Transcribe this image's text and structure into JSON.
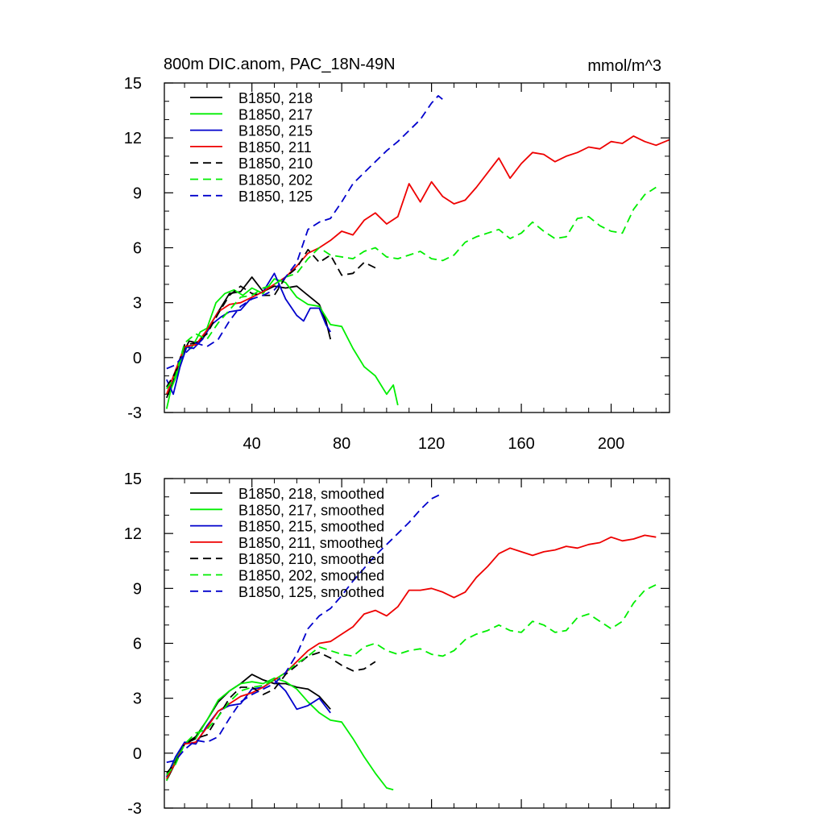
{
  "chart_data": [
    {
      "type": "line",
      "title": "800m DIC.anom, PAC_18N-49N",
      "units": "mmol/m^3",
      "xlabel": "",
      "ylabel": "",
      "xlim": [
        1,
        226
      ],
      "ylim": [
        -3,
        15
      ],
      "xticks": [
        40,
        80,
        120,
        160,
        200
      ],
      "xtick_labels": [
        "40",
        "80",
        "120",
        "160",
        "200"
      ],
      "yticks": [
        -3,
        0,
        3,
        6,
        9,
        12,
        15
      ],
      "ytick_labels": [
        "-3",
        "0",
        "3",
        "6",
        "9",
        "12",
        "15"
      ],
      "legend_position": "top-left",
      "series": [
        {
          "name": "B1850, 218",
          "color": "#000000",
          "dash": "solid",
          "x": [
            2,
            5,
            8,
            12,
            16,
            20,
            25,
            30,
            35,
            40,
            45,
            50,
            55,
            60,
            65,
            70,
            73,
            75
          ],
          "y": [
            -2.2,
            -1.3,
            -0.1,
            0.9,
            0.8,
            1.5,
            2.5,
            3.5,
            3.6,
            4.4,
            3.6,
            3.9,
            3.8,
            3.9,
            3.4,
            2.9,
            2.0,
            1.0
          ]
        },
        {
          "name": "B1850, 217",
          "color": "#00ee00",
          "dash": "solid",
          "x": [
            2,
            4,
            7,
            10,
            13,
            17,
            20,
            24,
            28,
            32,
            36,
            40,
            45,
            50,
            55,
            60,
            65,
            70,
            75,
            80,
            85,
            90,
            95,
            100,
            103,
            105
          ],
          "y": [
            -2.8,
            -1.7,
            -0.8,
            0.6,
            0.5,
            1.4,
            1.6,
            3.0,
            3.5,
            3.7,
            3.4,
            3.8,
            3.5,
            4.3,
            4.1,
            3.3,
            2.9,
            2.8,
            1.8,
            1.7,
            0.5,
            -0.5,
            -1.0,
            -2.0,
            -1.5,
            -2.6
          ]
        },
        {
          "name": "B1850, 215",
          "color": "#0000cc",
          "dash": "solid",
          "x": [
            2,
            5,
            8,
            11,
            14,
            18,
            22,
            26,
            30,
            35,
            40,
            45,
            50,
            55,
            60,
            63,
            66,
            70,
            73,
            75
          ],
          "y": [
            -1.2,
            -2.0,
            -0.5,
            0.6,
            0.5,
            1.0,
            1.8,
            2.2,
            2.5,
            2.6,
            3.3,
            3.6,
            4.6,
            3.2,
            2.3,
            2.0,
            2.7,
            2.7,
            1.8,
            1.4
          ]
        },
        {
          "name": "B1850, 211",
          "color": "#ee0000",
          "dash": "solid",
          "x": [
            2,
            6,
            10,
            15,
            20,
            25,
            30,
            35,
            40,
            45,
            50,
            55,
            60,
            65,
            70,
            75,
            80,
            85,
            90,
            95,
            100,
            105,
            110,
            115,
            120,
            125,
            130,
            135,
            140,
            145,
            150,
            155,
            160,
            165,
            170,
            175,
            180,
            185,
            190,
            195,
            200,
            205,
            210,
            215,
            220,
            226
          ],
          "y": [
            -2.0,
            -0.7,
            0.6,
            0.7,
            1.5,
            2.5,
            2.9,
            3.0,
            3.3,
            3.6,
            4.0,
            4.4,
            5.0,
            5.7,
            6.0,
            6.4,
            6.9,
            6.7,
            7.5,
            7.9,
            7.3,
            7.7,
            9.5,
            8.5,
            9.6,
            8.8,
            8.4,
            8.6,
            9.3,
            10.1,
            10.9,
            9.8,
            10.6,
            11.2,
            11.1,
            10.7,
            11.0,
            11.2,
            11.5,
            11.4,
            11.8,
            11.7,
            12.1,
            11.8,
            11.6,
            11.9
          ]
        },
        {
          "name": "B1850, 210",
          "color": "#000000",
          "dash": "dashed",
          "x": [
            2,
            6,
            10,
            15,
            20,
            25,
            30,
            35,
            40,
            45,
            50,
            55,
            60,
            65,
            70,
            75,
            80,
            85,
            90,
            95
          ],
          "y": [
            -1.6,
            -0.8,
            0.7,
            0.8,
            1.3,
            2.4,
            3.4,
            3.9,
            3.5,
            3.4,
            3.4,
            4.4,
            4.9,
            5.9,
            5.2,
            5.6,
            4.5,
            4.6,
            5.2,
            4.9
          ]
        },
        {
          "name": "B1850, 202",
          "color": "#00ee00",
          "dash": "dashed",
          "x": [
            2,
            6,
            10,
            15,
            20,
            25,
            30,
            35,
            40,
            45,
            50,
            55,
            60,
            65,
            70,
            75,
            80,
            85,
            90,
            95,
            100,
            105,
            110,
            115,
            120,
            125,
            130,
            135,
            140,
            145,
            150,
            155,
            160,
            165,
            170,
            175,
            180,
            185,
            190,
            195,
            200,
            205,
            210,
            215,
            220
          ],
          "y": [
            -1.7,
            -1.0,
            0.8,
            1.3,
            1.0,
            1.9,
            2.6,
            3.3,
            3.4,
            3.8,
            4.0,
            4.4,
            4.6,
            5.4,
            6.0,
            5.6,
            5.5,
            5.4,
            5.8,
            6.0,
            5.5,
            5.4,
            5.6,
            5.8,
            5.4,
            5.3,
            5.6,
            6.3,
            6.6,
            6.8,
            7.0,
            6.5,
            6.8,
            7.4,
            6.9,
            6.5,
            6.6,
            7.6,
            7.7,
            7.2,
            6.9,
            6.8,
            8.1,
            8.9,
            9.3
          ]
        },
        {
          "name": "B1850, 125",
          "color": "#0000cc",
          "dash": "dashed",
          "x": [
            2,
            6,
            10,
            15,
            20,
            25,
            30,
            35,
            40,
            45,
            50,
            55,
            60,
            65,
            70,
            75,
            80,
            85,
            90,
            95,
            100,
            105,
            110,
            115,
            120,
            123,
            126
          ],
          "y": [
            -0.6,
            -0.4,
            0.2,
            0.8,
            0.6,
            1.0,
            2.0,
            2.8,
            3.2,
            3.4,
            3.7,
            4.4,
            5.2,
            7.0,
            7.4,
            7.6,
            8.5,
            9.5,
            10.1,
            10.7,
            11.3,
            11.8,
            12.4,
            13.0,
            13.9,
            14.3,
            14.0
          ]
        }
      ]
    },
    {
      "type": "line",
      "title": "",
      "units": "",
      "xlabel": "",
      "ylabel": "",
      "xlim": [
        1,
        226
      ],
      "ylim": [
        -3,
        15
      ],
      "xticks": [
        40,
        80,
        120,
        160,
        200
      ],
      "xtick_labels": [],
      "yticks": [
        -3,
        0,
        3,
        6,
        9,
        12,
        15
      ],
      "ytick_labels": [
        "-3",
        "0",
        "3",
        "6",
        "9",
        "12",
        "15"
      ],
      "legend_position": "top-left",
      "series": [
        {
          "name": "B1850, 218, smoothed",
          "color": "#000000",
          "dash": "solid",
          "x": [
            2,
            6,
            10,
            15,
            20,
            25,
            30,
            35,
            40,
            45,
            50,
            55,
            60,
            65,
            70,
            75
          ],
          "y": [
            -1.5,
            -0.5,
            0.5,
            0.9,
            1.8,
            2.8,
            3.4,
            3.8,
            4.3,
            4.0,
            3.8,
            3.8,
            3.6,
            3.5,
            3.1,
            2.4
          ]
        },
        {
          "name": "B1850, 217, smoothed",
          "color": "#00ee00",
          "dash": "solid",
          "x": [
            2,
            6,
            10,
            15,
            20,
            25,
            30,
            35,
            40,
            45,
            50,
            55,
            60,
            65,
            70,
            75,
            80,
            85,
            90,
            95,
            100,
            103
          ],
          "y": [
            -1.5,
            -0.3,
            0.5,
            0.8,
            1.8,
            2.9,
            3.4,
            3.8,
            3.9,
            3.8,
            4.1,
            3.9,
            3.5,
            2.8,
            2.2,
            1.8,
            1.7,
            0.8,
            -0.2,
            -1.1,
            -1.9,
            -2.0
          ]
        },
        {
          "name": "B1850, 215, smoothed",
          "color": "#0000cc",
          "dash": "solid",
          "x": [
            2,
            6,
            10,
            15,
            20,
            25,
            30,
            35,
            40,
            45,
            50,
            55,
            60,
            65,
            70,
            75
          ],
          "y": [
            -1.3,
            -0.2,
            0.6,
            0.5,
            1.5,
            2.3,
            2.6,
            2.7,
            3.5,
            3.6,
            4.0,
            3.4,
            2.4,
            2.6,
            3.0,
            2.2
          ]
        },
        {
          "name": "B1850, 211, smoothed",
          "color": "#ee0000",
          "dash": "solid",
          "x": [
            2,
            6,
            10,
            15,
            20,
            25,
            30,
            35,
            40,
            45,
            50,
            55,
            60,
            65,
            70,
            75,
            80,
            85,
            90,
            95,
            100,
            105,
            110,
            115,
            120,
            125,
            130,
            135,
            140,
            145,
            150,
            155,
            160,
            165,
            170,
            175,
            180,
            185,
            190,
            195,
            200,
            205,
            210,
            215,
            220
          ],
          "y": [
            -1.4,
            -0.5,
            0.5,
            0.6,
            1.4,
            2.3,
            2.7,
            3.1,
            3.3,
            3.6,
            4.0,
            4.4,
            5.0,
            5.6,
            6.0,
            6.1,
            6.5,
            6.9,
            7.6,
            7.8,
            7.5,
            8.0,
            8.9,
            8.9,
            9.0,
            8.8,
            8.5,
            8.8,
            9.6,
            10.2,
            10.9,
            11.2,
            11.0,
            10.8,
            11.0,
            11.1,
            11.3,
            11.2,
            11.4,
            11.5,
            11.8,
            11.6,
            11.7,
            11.9,
            11.8
          ]
        },
        {
          "name": "B1850, 210, smoothed",
          "color": "#000000",
          "dash": "dashed",
          "x": [
            2,
            6,
            10,
            15,
            20,
            25,
            30,
            35,
            40,
            45,
            50,
            55,
            60,
            65,
            70,
            75,
            80,
            85,
            90,
            95
          ],
          "y": [
            -1.1,
            -0.5,
            0.5,
            0.8,
            1.0,
            2.0,
            3.0,
            3.6,
            3.6,
            3.2,
            3.5,
            4.3,
            4.8,
            5.3,
            5.5,
            5.2,
            4.8,
            4.5,
            4.6,
            5.0
          ]
        },
        {
          "name": "B1850, 202, smoothed",
          "color": "#00ee00",
          "dash": "dashed",
          "x": [
            2,
            6,
            10,
            15,
            20,
            25,
            30,
            35,
            40,
            45,
            50,
            55,
            60,
            65,
            70,
            75,
            80,
            85,
            90,
            95,
            100,
            105,
            110,
            115,
            120,
            125,
            130,
            135,
            140,
            145,
            150,
            155,
            160,
            165,
            170,
            175,
            180,
            185,
            190,
            195,
            200,
            205,
            210,
            215,
            220
          ],
          "y": [
            -1.2,
            -0.6,
            0.5,
            1.1,
            1.3,
            2.0,
            2.8,
            3.4,
            3.6,
            3.7,
            4.0,
            4.4,
            4.9,
            5.3,
            5.8,
            5.6,
            5.4,
            5.3,
            5.8,
            6.0,
            5.6,
            5.4,
            5.6,
            5.7,
            5.4,
            5.3,
            5.6,
            6.2,
            6.5,
            6.7,
            7.0,
            6.7,
            6.6,
            7.2,
            7.0,
            6.6,
            6.7,
            7.4,
            7.6,
            7.2,
            6.8,
            7.2,
            8.2,
            8.9,
            9.2
          ]
        },
        {
          "name": "B1850, 125, smoothed",
          "color": "#0000cc",
          "dash": "dashed",
          "x": [
            2,
            6,
            10,
            15,
            20,
            25,
            30,
            35,
            40,
            45,
            50,
            55,
            60,
            65,
            70,
            75,
            80,
            85,
            90,
            95,
            100,
            105,
            110,
            115,
            120,
            125
          ],
          "y": [
            -0.5,
            -0.4,
            0.2,
            0.7,
            0.6,
            0.9,
            1.9,
            2.8,
            3.2,
            3.5,
            3.8,
            4.4,
            5.4,
            6.8,
            7.5,
            7.9,
            8.6,
            9.4,
            10.1,
            10.8,
            11.4,
            12.0,
            12.6,
            13.3,
            13.9,
            14.2
          ]
        }
      ]
    }
  ]
}
